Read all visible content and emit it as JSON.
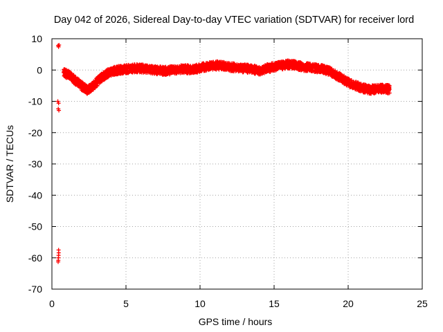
{
  "chart_data": {
    "type": "scatter",
    "title": "Day 042 of 2026, Sidereal Day-to-day VTEC variation (SDTVAR) for receiver lord",
    "xlabel": "GPS time / hours",
    "ylabel": "SDTVAR / TECUs",
    "xlim": [
      0,
      25
    ],
    "ylim": [
      -70,
      10
    ],
    "xticks": [
      0,
      5,
      10,
      15,
      20,
      25
    ],
    "yticks": [
      10,
      0,
      -10,
      -20,
      -30,
      -40,
      -50,
      -60,
      -70
    ],
    "grid": true,
    "marker": "+",
    "color": "#ff0000",
    "series": [
      {
        "name": "SDTVAR",
        "outlier_points": [
          {
            "x": 0.42,
            "y": 7.8
          },
          {
            "x": 0.45,
            "y": 7.4
          },
          {
            "x": 0.48,
            "y": 8.0
          },
          {
            "x": 0.4,
            "y": -10.0
          },
          {
            "x": 0.45,
            "y": -10.6
          },
          {
            "x": 0.43,
            "y": -12.4
          },
          {
            "x": 0.47,
            "y": -12.9
          },
          {
            "x": 0.45,
            "y": -57.5
          },
          {
            "x": 0.46,
            "y": -58.4
          },
          {
            "x": 0.45,
            "y": -59.2
          },
          {
            "x": 0.44,
            "y": -60.0
          },
          {
            "x": 0.43,
            "y": -60.8
          },
          {
            "x": 0.42,
            "y": -61.3
          }
        ],
        "trend": [
          {
            "x": 0.8,
            "y": -1.0
          },
          {
            "x": 1.2,
            "y": -1.5
          },
          {
            "x": 1.6,
            "y": -3.5
          },
          {
            "x": 2.0,
            "y": -5.0
          },
          {
            "x": 2.4,
            "y": -6.5
          },
          {
            "x": 2.8,
            "y": -5.0
          },
          {
            "x": 3.2,
            "y": -3.0
          },
          {
            "x": 3.6,
            "y": -1.5
          },
          {
            "x": 4.0,
            "y": -0.5
          },
          {
            "x": 4.5,
            "y": 0.0
          },
          {
            "x": 5.0,
            "y": 0.3
          },
          {
            "x": 5.5,
            "y": 0.5
          },
          {
            "x": 6.0,
            "y": 0.5
          },
          {
            "x": 6.5,
            "y": 0.3
          },
          {
            "x": 7.0,
            "y": 0.0
          },
          {
            "x": 7.5,
            "y": -0.3
          },
          {
            "x": 8.0,
            "y": -0.1
          },
          {
            "x": 8.5,
            "y": 0.2
          },
          {
            "x": 9.0,
            "y": 0.3
          },
          {
            "x": 9.5,
            "y": 0.2
          },
          {
            "x": 10.0,
            "y": 0.6
          },
          {
            "x": 10.5,
            "y": 1.2
          },
          {
            "x": 11.0,
            "y": 1.5
          },
          {
            "x": 11.5,
            "y": 1.3
          },
          {
            "x": 12.0,
            "y": 1.0
          },
          {
            "x": 12.5,
            "y": 0.8
          },
          {
            "x": 13.0,
            "y": 0.5
          },
          {
            "x": 13.5,
            "y": 0.2
          },
          {
            "x": 14.0,
            "y": -0.2
          },
          {
            "x": 14.5,
            "y": 0.5
          },
          {
            "x": 15.0,
            "y": 1.0
          },
          {
            "x": 15.5,
            "y": 1.5
          },
          {
            "x": 16.0,
            "y": 1.8
          },
          {
            "x": 16.5,
            "y": 1.5
          },
          {
            "x": 17.0,
            "y": 1.0
          },
          {
            "x": 17.5,
            "y": 0.8
          },
          {
            "x": 18.0,
            "y": 0.5
          },
          {
            "x": 18.5,
            "y": 0.0
          },
          {
            "x": 19.0,
            "y": -1.0
          },
          {
            "x": 19.5,
            "y": -2.5
          },
          {
            "x": 20.0,
            "y": -4.0
          },
          {
            "x": 20.5,
            "y": -5.0
          },
          {
            "x": 21.0,
            "y": -5.8
          },
          {
            "x": 21.5,
            "y": -6.3
          },
          {
            "x": 22.0,
            "y": -6.0
          },
          {
            "x": 22.5,
            "y": -6.0
          },
          {
            "x": 22.8,
            "y": -6.2
          }
        ],
        "trend_spread": 1.3
      }
    ]
  }
}
